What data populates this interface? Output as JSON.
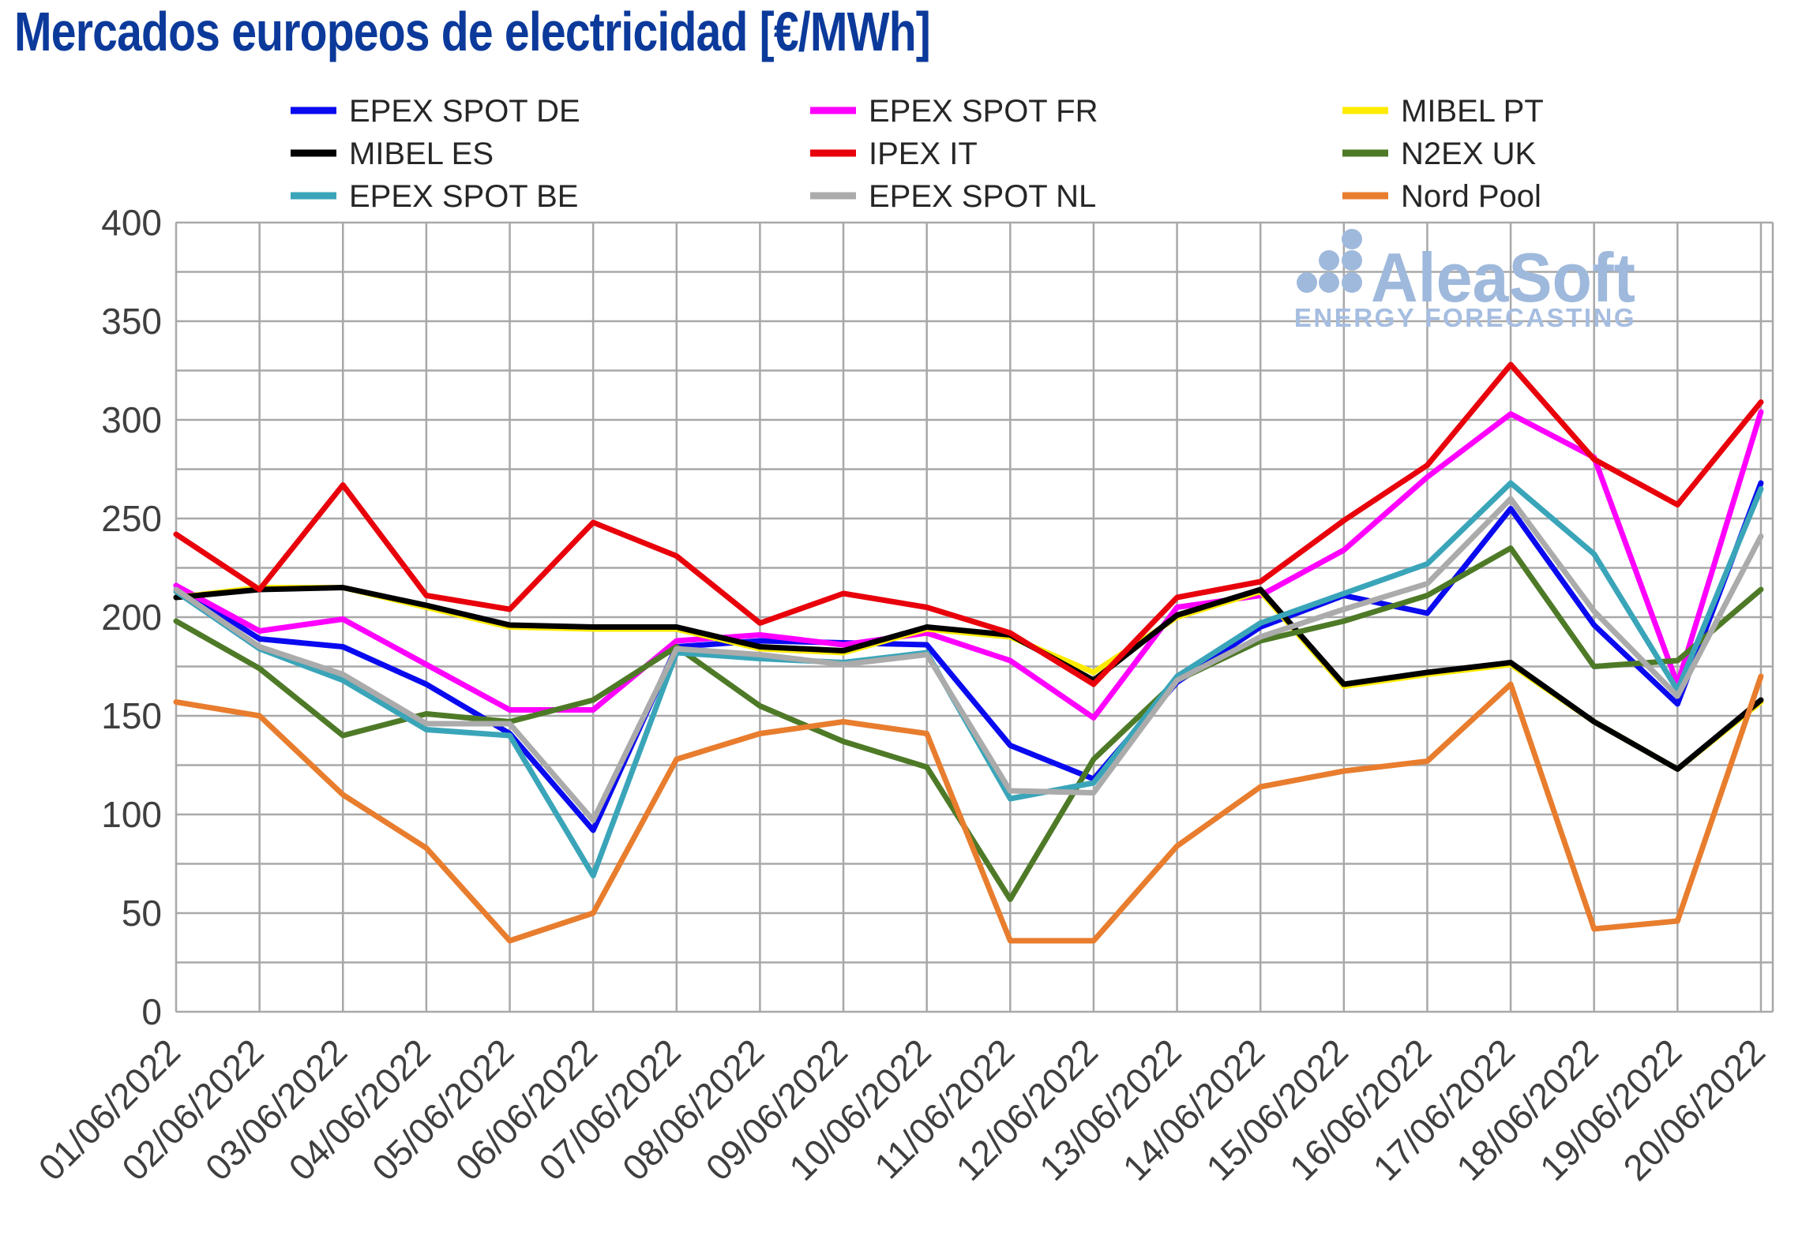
{
  "title": {
    "text": "Mercados europeos de electricidad [€/MWh]",
    "color": "#0C3A9B"
  },
  "logo": {
    "name": "AleaSoft",
    "tagline": "ENERGY FORECASTING",
    "name_color": "#9FB9DC",
    "tagline_color": "#A5BDE0"
  },
  "axes": {
    "tick_color": "#3F3F3F",
    "grid_color": "#A8A8A8",
    "legend_text_color": "#262626"
  },
  "chart_data": {
    "type": "line",
    "title": "Mercados europeos de electricidad [€/MWh]",
    "xlabel": "",
    "ylabel": "€/MWh",
    "ylim": [
      0,
      400
    ],
    "grid": true,
    "grid_step": 25,
    "label_step": 50,
    "legend_position": "top",
    "categories": [
      "01/06/2022",
      "02/06/2022",
      "03/06/2022",
      "04/06/2022",
      "05/06/2022",
      "06/06/2022",
      "07/06/2022",
      "08/06/2022",
      "09/06/2022",
      "10/06/2022",
      "11/06/2022",
      "12/06/2022",
      "13/06/2022",
      "14/06/2022",
      "15/06/2022",
      "16/06/2022",
      "17/06/2022",
      "18/06/2022",
      "19/06/2022",
      "20/06/2022"
    ],
    "series": [
      {
        "name": "EPEX SPOT DE",
        "color": "#0A0AF0",
        "values": [
          216,
          189,
          185,
          166,
          141,
          92,
          185,
          188,
          187,
          186,
          135,
          118,
          167,
          195,
          211,
          202,
          255,
          196,
          156,
          268
        ]
      },
      {
        "name": "EPEX SPOT FR",
        "color": "#FF00FF",
        "values": [
          216,
          193,
          199,
          176,
          153,
          153,
          188,
          191,
          186,
          192,
          178,
          149,
          205,
          211,
          234,
          271,
          303,
          281,
          166,
          304
        ]
      },
      {
        "name": "MIBEL PT",
        "color": "#FFEB00",
        "values": [
          210,
          215,
          215,
          205,
          195,
          194,
          194,
          184,
          182,
          194,
          190,
          172,
          200,
          213,
          165,
          171,
          176,
          147,
          123,
          157
        ]
      },
      {
        "name": "MIBEL ES",
        "color": "#000000",
        "values": [
          210,
          214,
          215,
          206,
          196,
          195,
          195,
          185,
          183,
          195,
          191,
          168,
          201,
          214,
          166,
          172,
          177,
          147,
          123,
          158
        ]
      },
      {
        "name": "IPEX IT",
        "color": "#E8000B",
        "values": [
          242,
          214,
          267,
          211,
          204,
          248,
          231,
          197,
          212,
          205,
          192,
          166,
          210,
          218,
          249,
          277,
          328,
          280,
          257,
          309
        ]
      },
      {
        "name": "N2EX UK",
        "color": "#4E7A27",
        "values": [
          198,
          174,
          140,
          151,
          147,
          158,
          185,
          155,
          137,
          124,
          57,
          128,
          168,
          188,
          198,
          211,
          235,
          175,
          178,
          214
        ]
      },
      {
        "name": "EPEX SPOT BE",
        "color": "#3AA5B9",
        "values": [
          213,
          184,
          168,
          143,
          140,
          69,
          182,
          179,
          177,
          182,
          108,
          116,
          170,
          197,
          212,
          227,
          268,
          232,
          163,
          265
        ]
      },
      {
        "name": "EPEX SPOT NL",
        "color": "#ABABAB",
        "values": [
          214,
          185,
          171,
          146,
          146,
          97,
          184,
          181,
          176,
          181,
          112,
          111,
          168,
          190,
          204,
          217,
          260,
          203,
          160,
          241
        ]
      },
      {
        "name": "Nord Pool",
        "color": "#E87D2E",
        "values": [
          157,
          150,
          110,
          83,
          36,
          50,
          128,
          141,
          147,
          141,
          36,
          36,
          84,
          114,
          122,
          127,
          166,
          42,
          46,
          170
        ]
      }
    ]
  }
}
